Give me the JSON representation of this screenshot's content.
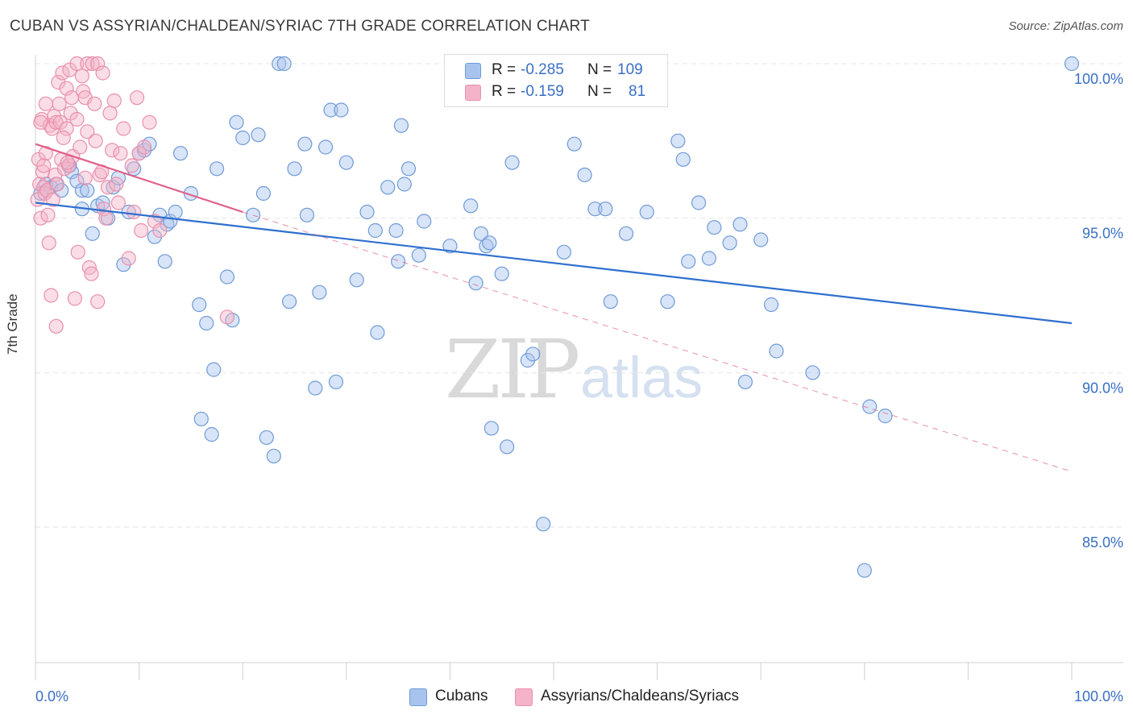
{
  "header": {
    "title": "CUBAN VS ASSYRIAN/CHALDEAN/SYRIAC 7TH GRADE CORRELATION CHART",
    "source": "Source: ZipAtlas.com"
  },
  "watermark": {
    "zip": "ZIP",
    "atlas": "atlas"
  },
  "legend": {
    "rows": [
      {
        "r_label": "R =",
        "r_value": "-0.285",
        "n_label": "N =",
        "n_value": "109",
        "color": "#a8c4ee"
      },
      {
        "r_label": "R =",
        "r_value": "-0.159",
        "n_label": "N =",
        "n_value": "81",
        "color": "#f4b3c8"
      }
    ]
  },
  "bottom_legend": [
    {
      "label": "Cubans",
      "color": "#a8c4ee"
    },
    {
      "label": "Assyrians/Chaldeans/Syriacs",
      "color": "#f4b3c8"
    }
  ],
  "colors": {
    "blue_fill": "#a8c4ee",
    "blue_stroke": "#6f9bd8",
    "blue_line": "#2f6fcf",
    "pink_fill": "#f4b3c8",
    "pink_stroke": "#e890ad",
    "pink_line": "#e0608a",
    "tick_label": "#3a6fc4",
    "grid": "#e6e6e6"
  },
  "chart_data": {
    "type": "scatter",
    "title": "CUBAN VS ASSYRIAN/CHALDEAN/SYRIAC 7TH GRADE CORRELATION CHART",
    "xlabel": "",
    "ylabel": "7th Grade",
    "xlim": [
      0,
      100
    ],
    "ylim": [
      80.5,
      101
    ],
    "x_tick_labels": [
      "0.0%",
      "100.0%"
    ],
    "y_ticks": [
      85,
      90,
      95,
      100
    ],
    "y_tick_labels": [
      "85.0%",
      "90.0%",
      "95.0%",
      "100.0%"
    ],
    "grid": true,
    "legend_position": "top-center",
    "series": [
      {
        "name": "Cubans",
        "trend": {
          "x": [
            0,
            100
          ],
          "y": [
            95.5,
            91.6
          ]
        },
        "points": [
          [
            0.5,
            95.8
          ],
          [
            1,
            96.1
          ],
          [
            1.5,
            96
          ],
          [
            2,
            96.1
          ],
          [
            2.5,
            95.9
          ],
          [
            3.3,
            96.7
          ],
          [
            3.5,
            96.5
          ],
          [
            4,
            96.2
          ],
          [
            4.5,
            95.9
          ],
          [
            4.5,
            95.3
          ],
          [
            5,
            95.9
          ],
          [
            5.5,
            94.5
          ],
          [
            6,
            95.4
          ],
          [
            6.5,
            95.5
          ],
          [
            7,
            95
          ],
          [
            7.5,
            96
          ],
          [
            8,
            96.3
          ],
          [
            8.5,
            93.5
          ],
          [
            9,
            95.2
          ],
          [
            9.5,
            96.6
          ],
          [
            10,
            97.1
          ],
          [
            10.5,
            97.2
          ],
          [
            11,
            97.4
          ],
          [
            11.5,
            94.4
          ],
          [
            12,
            95.1
          ],
          [
            12.5,
            93.6
          ],
          [
            12.7,
            94.8
          ],
          [
            13,
            94.9
          ],
          [
            13.5,
            95.2
          ],
          [
            14,
            97.1
          ],
          [
            15,
            95.8
          ],
          [
            15.8,
            92.2
          ],
          [
            16,
            88.5
          ],
          [
            16.5,
            91.6
          ],
          [
            17,
            88
          ],
          [
            17.2,
            90.1
          ],
          [
            17.5,
            96.6
          ],
          [
            18.5,
            93.1
          ],
          [
            19,
            91.7
          ],
          [
            19.4,
            98.1
          ],
          [
            20,
            97.6
          ],
          [
            21,
            95.1
          ],
          [
            21.5,
            97.7
          ],
          [
            22,
            95.8
          ],
          [
            22.3,
            87.9
          ],
          [
            23,
            87.3
          ],
          [
            23.5,
            100
          ],
          [
            24,
            100
          ],
          [
            24.5,
            92.3
          ],
          [
            25,
            96.6
          ],
          [
            26,
            97.4
          ],
          [
            26.2,
            95.1
          ],
          [
            27,
            89.5
          ],
          [
            27.4,
            92.6
          ],
          [
            28,
            97.3
          ],
          [
            28.5,
            98.5
          ],
          [
            29,
            89.7
          ],
          [
            29.5,
            98.5
          ],
          [
            30,
            96.8
          ],
          [
            31,
            93
          ],
          [
            32,
            95.2
          ],
          [
            32.8,
            94.6
          ],
          [
            33,
            91.3
          ],
          [
            34,
            96
          ],
          [
            34.8,
            94.6
          ],
          [
            35,
            93.6
          ],
          [
            35.3,
            98
          ],
          [
            35.6,
            96.1
          ],
          [
            36,
            96.6
          ],
          [
            37,
            93.8
          ],
          [
            37.5,
            94.9
          ],
          [
            40,
            94.1
          ],
          [
            42,
            95.4
          ],
          [
            42.5,
            92.9
          ],
          [
            43,
            94.5
          ],
          [
            43.5,
            94.1
          ],
          [
            43.8,
            94.2
          ],
          [
            44,
            88.2
          ],
          [
            45,
            93.2
          ],
          [
            45.5,
            87.6
          ],
          [
            46,
            96.8
          ],
          [
            47.5,
            90.4
          ],
          [
            48,
            90.6
          ],
          [
            49,
            85.1
          ],
          [
            51,
            93.9
          ],
          [
            52,
            97.4
          ],
          [
            53,
            96.4
          ],
          [
            54,
            95.3
          ],
          [
            55,
            95.3
          ],
          [
            55.5,
            92.3
          ],
          [
            57,
            94.5
          ],
          [
            59,
            95.2
          ],
          [
            61,
            92.3
          ],
          [
            62,
            97.5
          ],
          [
            62.5,
            96.9
          ],
          [
            63,
            93.6
          ],
          [
            64,
            95.5
          ],
          [
            65,
            93.7
          ],
          [
            65.5,
            94.7
          ],
          [
            67,
            94.2
          ],
          [
            68,
            94.8
          ],
          [
            68.5,
            89.7
          ],
          [
            70,
            94.3
          ],
          [
            71,
            92.2
          ],
          [
            71.5,
            90.7
          ],
          [
            75,
            90
          ],
          [
            80,
            83.6
          ],
          [
            80.5,
            88.9
          ],
          [
            82,
            88.6
          ],
          [
            100,
            100
          ]
        ]
      },
      {
        "name": "Assyrians/Chaldeans/Syriacs",
        "trend": {
          "x": [
            0,
            20
          ],
          "y": [
            97.4,
            95.2
          ]
        },
        "trend_extension": {
          "x": [
            20,
            100
          ],
          "y": [
            95.2,
            86.8
          ]
        },
        "points": [
          [
            0.3,
            96.9
          ],
          [
            0.4,
            96.1
          ],
          [
            0.5,
            95
          ],
          [
            0.6,
            98.2
          ],
          [
            0.7,
            96.5
          ],
          [
            0.8,
            96
          ],
          [
            1,
            98.7
          ],
          [
            1,
            97.1
          ],
          [
            1.2,
            95.1
          ],
          [
            1.3,
            94.2
          ],
          [
            1.4,
            98
          ],
          [
            1.5,
            92.5
          ],
          [
            1.6,
            97.9
          ],
          [
            1.8,
            98.3
          ],
          [
            1.9,
            96.4
          ],
          [
            2,
            98.1
          ],
          [
            2,
            91.5
          ],
          [
            2.2,
            99.4
          ],
          [
            2.3,
            98.7
          ],
          [
            2.4,
            98.1
          ],
          [
            2.5,
            96.9
          ],
          [
            2.6,
            99.7
          ],
          [
            2.8,
            96.6
          ],
          [
            3,
            99.2
          ],
          [
            3,
            97.9
          ],
          [
            3.2,
            96.7
          ],
          [
            3.3,
            99.8
          ],
          [
            3.4,
            98.4
          ],
          [
            3.5,
            98.9
          ],
          [
            3.6,
            97
          ],
          [
            3.8,
            92.4
          ],
          [
            4,
            100
          ],
          [
            4,
            98.2
          ],
          [
            4.1,
            93.9
          ],
          [
            4.3,
            97.3
          ],
          [
            4.5,
            99.6
          ],
          [
            4.6,
            99.1
          ],
          [
            4.8,
            98.9
          ],
          [
            5,
            97.8
          ],
          [
            5,
            100
          ],
          [
            5.2,
            93.4
          ],
          [
            5.4,
            93.2
          ],
          [
            5.5,
            100
          ],
          [
            5.7,
            98.7
          ],
          [
            6,
            92.3
          ],
          [
            6,
            100
          ],
          [
            6.2,
            96.4
          ],
          [
            6.5,
            99.7
          ],
          [
            6.6,
            95.3
          ],
          [
            6.8,
            95
          ],
          [
            7,
            96
          ],
          [
            7.2,
            98.4
          ],
          [
            7.4,
            97.2
          ],
          [
            7.6,
            98.8
          ],
          [
            7.8,
            96.1
          ],
          [
            8,
            95.5
          ],
          [
            8.2,
            97.1
          ],
          [
            8.5,
            97.9
          ],
          [
            9,
            93.7
          ],
          [
            9.5,
            95.2
          ],
          [
            9.8,
            98.9
          ],
          [
            10,
            97.1
          ],
          [
            10.2,
            94.6
          ],
          [
            10.5,
            97.3
          ],
          [
            11,
            98.1
          ],
          [
            11.5,
            94.9
          ],
          [
            12,
            94.6
          ],
          [
            18.5,
            91.8
          ],
          [
            0.2,
            95.6
          ],
          [
            0.9,
            95.8
          ],
          [
            1.1,
            95.9
          ],
          [
            0.5,
            98.1
          ],
          [
            2.1,
            96.1
          ],
          [
            3.1,
            96.8
          ],
          [
            6.4,
            96.5
          ],
          [
            1.7,
            95.6
          ],
          [
            0.8,
            96.7
          ],
          [
            2.7,
            97.6
          ],
          [
            5.8,
            97.5
          ],
          [
            9.3,
            96.7
          ],
          [
            4.8,
            96.3
          ]
        ]
      }
    ]
  }
}
